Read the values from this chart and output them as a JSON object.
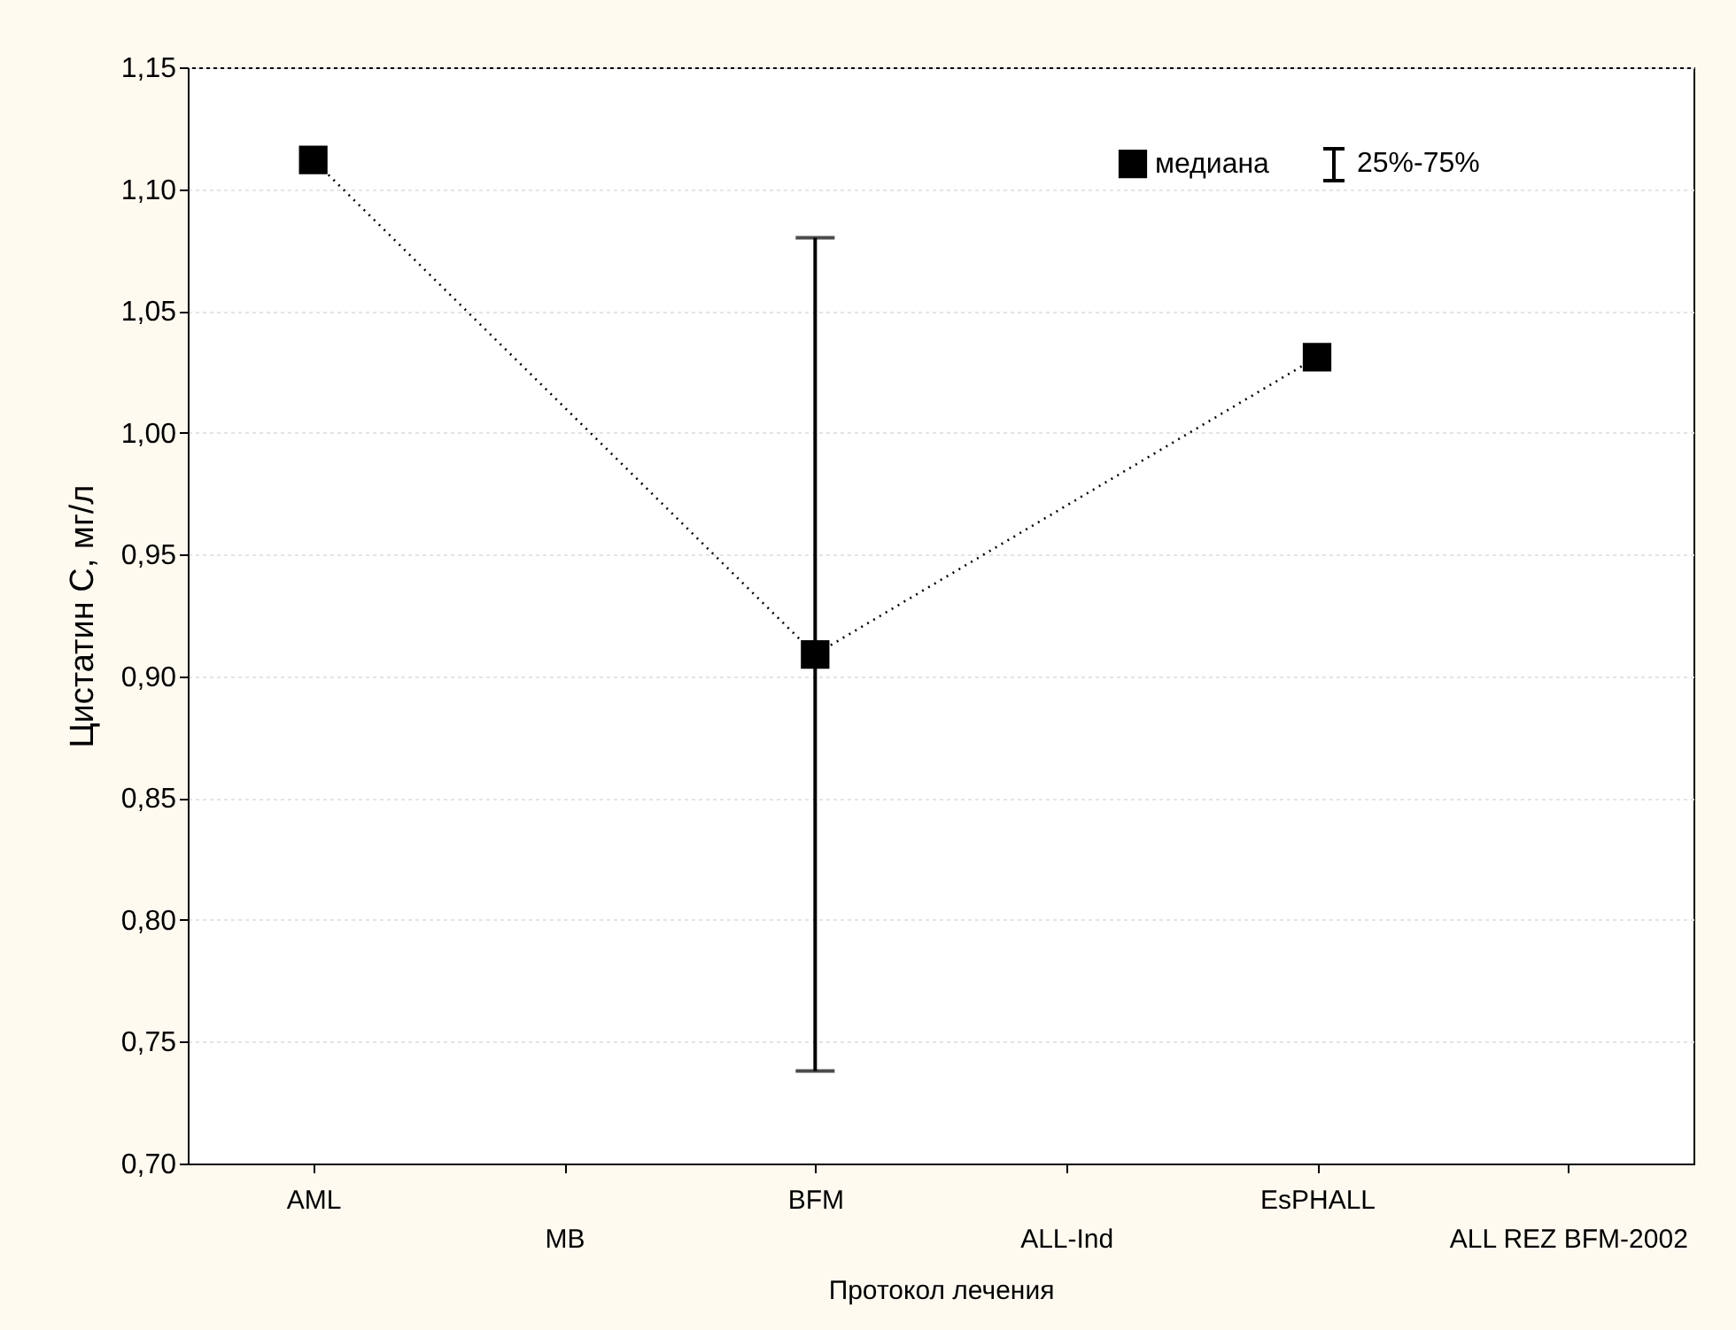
{
  "chart_data": {
    "type": "line",
    "xlabel": "Протокол лечения",
    "ylabel": "Цистатин C, мг/л",
    "categories": [
      "AML",
      "MB",
      "BFM",
      "ALL-Ind",
      "EsPHALL",
      "ALL REZ BFM-2002"
    ],
    "series": [
      {
        "name": "медиана",
        "color": "#000000",
        "values": [
          1.112,
          null,
          0.909,
          null,
          1.031,
          null
        ],
        "errors": [
          null,
          null,
          [
            0.738,
            1.08
          ],
          null,
          null,
          null
        ]
      }
    ],
    "annotations": [
      "25%-75%"
    ],
    "ylim": [
      0.7,
      1.15
    ],
    "yticks": [
      {
        "value": 0.7,
        "label": "0,70"
      },
      {
        "value": 0.75,
        "label": "0,75"
      },
      {
        "value": 0.8,
        "label": "0,80"
      },
      {
        "value": 0.85,
        "label": "0,85"
      },
      {
        "value": 0.9,
        "label": "0,90"
      },
      {
        "value": 0.95,
        "label": "0,95"
      },
      {
        "value": 1.0,
        "label": "1,00"
      },
      {
        "value": 1.05,
        "label": "1,05"
      },
      {
        "value": 1.1,
        "label": "1,10"
      },
      {
        "value": 1.15,
        "label": "1,15"
      }
    ],
    "grid": "y",
    "legend": "top right",
    "marker": "square",
    "line_style": "dotted"
  }
}
